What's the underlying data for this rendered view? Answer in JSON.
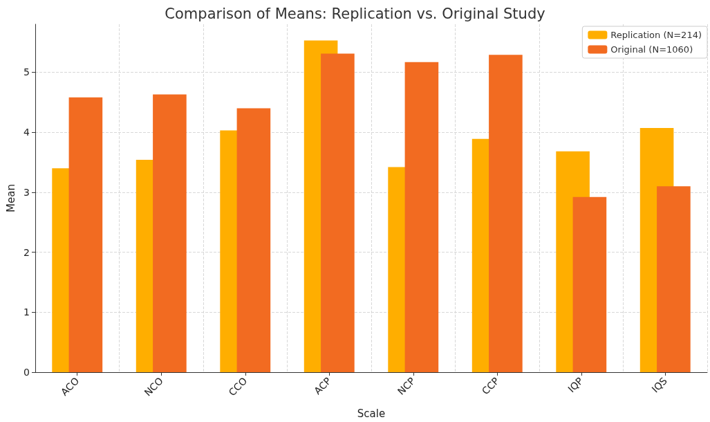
{
  "chart_data": {
    "type": "bar",
    "title": "Comparison of Means: Replication vs. Original Study",
    "xlabel": "Scale",
    "ylabel": "Mean",
    "categories": [
      "ACO",
      "NCO",
      "CCO",
      "ACP",
      "NCP",
      "CCP",
      "IQP",
      "IQS"
    ],
    "series": [
      {
        "name": "Replication (N=214)",
        "color": "#ffae00",
        "values": [
          3.4,
          3.54,
          4.03,
          5.53,
          3.42,
          3.89,
          3.68,
          4.07
        ]
      },
      {
        "name": "Original (N=1060)",
        "color": "#f26b21",
        "values": [
          4.58,
          4.63,
          4.4,
          5.31,
          5.17,
          5.29,
          2.92,
          3.1
        ]
      }
    ],
    "ylim": [
      0,
      5.8
    ],
    "yticks": [
      0,
      1,
      2,
      3,
      4,
      5
    ],
    "grid": true,
    "legend": "top right"
  }
}
